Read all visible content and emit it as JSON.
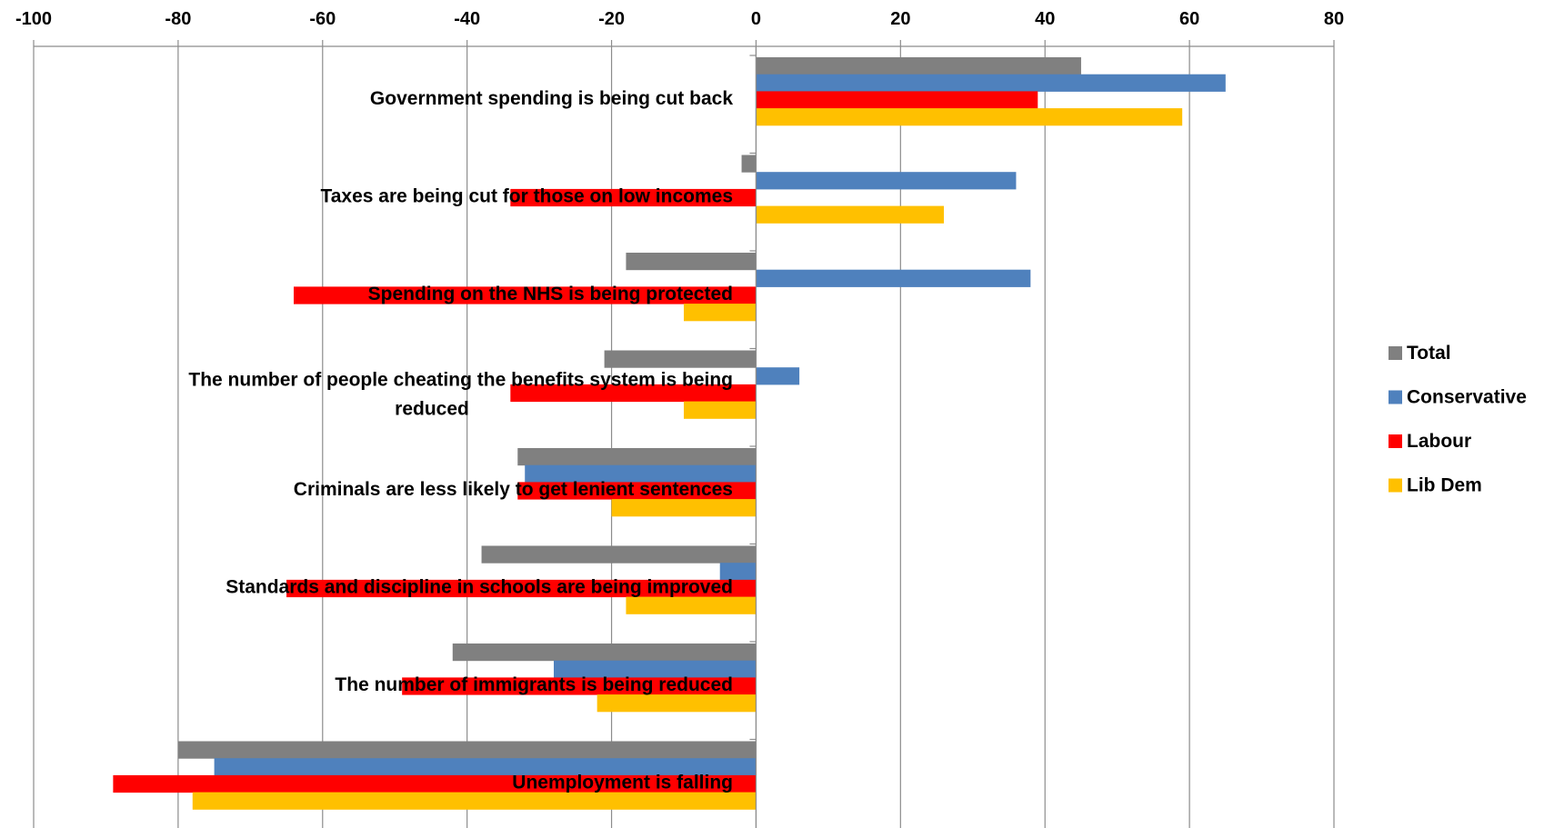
{
  "chart_data": {
    "type": "bar",
    "orientation": "horizontal",
    "xlim": [
      -100,
      80
    ],
    "x_ticks": [
      "-100",
      "-80",
      "-60",
      "-40",
      "-20",
      "0",
      "20",
      "40",
      "60",
      "80"
    ],
    "x_tick_values": [
      -100,
      -80,
      -60,
      -40,
      -20,
      0,
      20,
      40,
      60,
      80
    ],
    "x_axis_position": "top",
    "grid": true,
    "legend_position": "right",
    "categories": [
      "Government spending is being cut back",
      "Taxes are being cut for those on low incomes",
      "Spending on the NHS is being protected",
      "The number of people cheating the benefits system is being reduced",
      "Criminals are less likely to get lenient sentences",
      "Standards and discipline in schools are being improved",
      "The number of immigrants is being reduced",
      "Unemployment is falling"
    ],
    "category_lines": [
      [
        "Government spending is being cut back"
      ],
      [
        "Taxes are being cut for those on low incomes"
      ],
      [
        "Spending on the NHS is being protected"
      ],
      [
        "The number of people cheating the benefits system is being",
        "reduced"
      ],
      [
        "Criminals are less likely to get lenient sentences"
      ],
      [
        "Standards and discipline in schools are being improved"
      ],
      [
        "The number of immigrants is being reduced"
      ],
      [
        "Unemployment is falling"
      ]
    ],
    "series": [
      {
        "name": "Total",
        "color": "#808080",
        "values": [
          45,
          -2,
          -18,
          -21,
          -33,
          -38,
          -42,
          -80
        ]
      },
      {
        "name": "Conservative",
        "color": "#4F81BD",
        "values": [
          65,
          36,
          38,
          6,
          -32,
          -5,
          -28,
          -75
        ]
      },
      {
        "name": "Labour",
        "color": "#FF0000",
        "values": [
          39,
          -34,
          -64,
          -34,
          -33,
          -65,
          -49,
          -89
        ]
      },
      {
        "name": "Lib Dem",
        "color": "#FFC000",
        "values": [
          59,
          26,
          -10,
          -10,
          -20,
          -18,
          -22,
          -78
        ]
      }
    ]
  }
}
